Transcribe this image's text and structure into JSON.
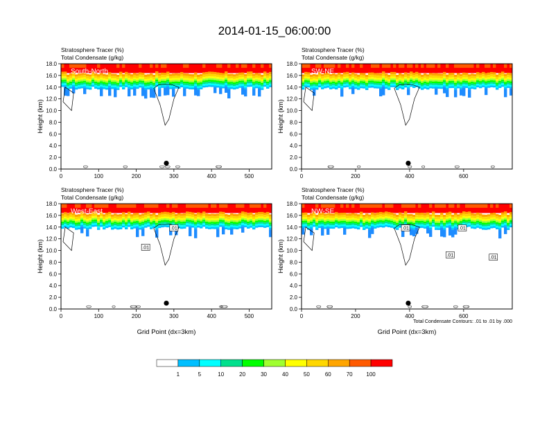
{
  "chart_data": {
    "type": "heatmap",
    "title": "2014-01-15_06:00:00",
    "field_labels": [
      "Stratosphere Tracer   (%)",
      "Total Condensate   (g/kg)"
    ],
    "ylabel": "Height (km)",
    "xlabel": "Grid Point (dx=3km)",
    "ylim": [
      0,
      18
    ],
    "yticks": [
      "0.0",
      "2.0",
      "4.0",
      "6.0",
      "8.0",
      "10.0",
      "12.0",
      "14.0",
      "16.0",
      "18.0"
    ],
    "contour_note": "Total Condensate Contours: .01 to .01 by .000",
    "colorbar": {
      "levels": [
        "1",
        "5",
        "10",
        "20",
        "30",
        "40",
        "50",
        "60",
        "70",
        "100"
      ],
      "colors": [
        "#ffffff",
        "#1e8cff",
        "#00bfff",
        "#00ffff",
        "#00e08c",
        "#00ff00",
        "#a0ff30",
        "#ffff00",
        "#ffd700",
        "#ffa500",
        "#ff5a00",
        "#ff0000"
      ]
    },
    "panels": [
      {
        "label": "South-North",
        "xlim": [
          0,
          560
        ],
        "xticks": [
          0,
          100,
          200,
          300,
          400,
          500
        ],
        "marker_x": 280,
        "contour_labels": [],
        "show_xlabel": false,
        "show_note": false
      },
      {
        "label": "SW-NE",
        "xlim": [
          0,
          780
        ],
        "xticks": [
          0,
          200,
          400,
          600
        ],
        "marker_x": 395,
        "contour_labels": [],
        "show_xlabel": false,
        "show_note": false
      },
      {
        "label": "West-East",
        "xlim": [
          0,
          560
        ],
        "xticks": [
          0,
          100,
          200,
          300,
          400,
          500
        ],
        "marker_x": 280,
        "contour_labels": [
          {
            "text": ".01",
            "x": 300,
            "y": 13.8
          },
          {
            "text": ".01",
            "x": 225,
            "y": 10.5
          }
        ],
        "show_xlabel": true,
        "show_note": false
      },
      {
        "label": "NW-SE",
        "xlim": [
          0,
          780
        ],
        "xticks": [
          0,
          200,
          400,
          600
        ],
        "marker_x": 395,
        "contour_labels": [
          {
            "text": ".01",
            "x": 385,
            "y": 13.8
          },
          {
            "text": ".01",
            "x": 595,
            "y": 13.8
          },
          {
            "text": ".01",
            "x": 550,
            "y": 9.2
          },
          {
            "text": ".01",
            "x": 710,
            "y": 8.8
          }
        ],
        "show_xlabel": true,
        "show_note": true
      }
    ]
  }
}
